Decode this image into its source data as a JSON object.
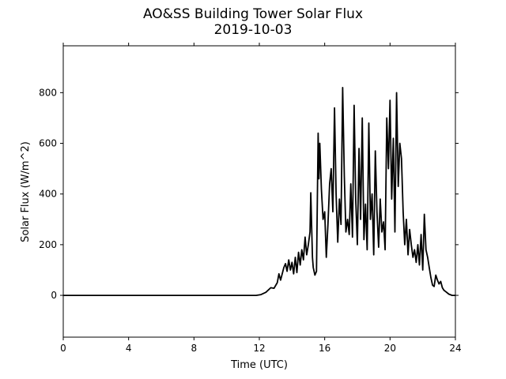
{
  "chart_data": {
    "type": "line",
    "title": "AO&SS Building Tower Solar Flux",
    "subtitle": "2019-10-03",
    "xlabel": "Time (UTC)",
    "ylabel": "Solar Flux (W/m^2)",
    "xlim": [
      0,
      24
    ],
    "ylim": [
      -165,
      985
    ],
    "xticks": [
      0,
      4,
      8,
      12,
      16,
      20,
      24
    ],
    "yticks": [
      0,
      200,
      400,
      600,
      800
    ],
    "grid": false,
    "legend": "none",
    "series": [
      {
        "color": "#000000",
        "points": [
          [
            0,
            0
          ],
          [
            11.8,
            0
          ],
          [
            12.1,
            3
          ],
          [
            12.4,
            12
          ],
          [
            12.7,
            30
          ],
          [
            12.9,
            28
          ],
          [
            13.1,
            50
          ],
          [
            13.2,
            85
          ],
          [
            13.3,
            60
          ],
          [
            13.5,
            110
          ],
          [
            13.6,
            125
          ],
          [
            13.7,
            95
          ],
          [
            13.8,
            140
          ],
          [
            13.9,
            100
          ],
          [
            14.0,
            130
          ],
          [
            14.1,
            85
          ],
          [
            14.2,
            150
          ],
          [
            14.3,
            90
          ],
          [
            14.4,
            170
          ],
          [
            14.5,
            120
          ],
          [
            14.6,
            180
          ],
          [
            14.7,
            140
          ],
          [
            14.8,
            230
          ],
          [
            14.9,
            160
          ],
          [
            15.0,
            200
          ],
          [
            15.1,
            250
          ],
          [
            15.15,
            405
          ],
          [
            15.2,
            280
          ],
          [
            15.25,
            150
          ],
          [
            15.3,
            110
          ],
          [
            15.4,
            80
          ],
          [
            15.5,
            95
          ],
          [
            15.6,
            640
          ],
          [
            15.65,
            460
          ],
          [
            15.7,
            600
          ],
          [
            15.8,
            420
          ],
          [
            15.9,
            300
          ],
          [
            16.0,
            330
          ],
          [
            16.1,
            150
          ],
          [
            16.2,
            280
          ],
          [
            16.3,
            440
          ],
          [
            16.4,
            500
          ],
          [
            16.5,
            330
          ],
          [
            16.6,
            740
          ],
          [
            16.7,
            400
          ],
          [
            16.8,
            210
          ],
          [
            16.9,
            380
          ],
          [
            17.0,
            280
          ],
          [
            17.1,
            820
          ],
          [
            17.2,
            470
          ],
          [
            17.3,
            250
          ],
          [
            17.4,
            300
          ],
          [
            17.5,
            240
          ],
          [
            17.6,
            440
          ],
          [
            17.7,
            230
          ],
          [
            17.8,
            750
          ],
          [
            17.9,
            380
          ],
          [
            18.0,
            200
          ],
          [
            18.1,
            580
          ],
          [
            18.2,
            300
          ],
          [
            18.3,
            700
          ],
          [
            18.4,
            220
          ],
          [
            18.5,
            360
          ],
          [
            18.6,
            180
          ],
          [
            18.7,
            680
          ],
          [
            18.8,
            300
          ],
          [
            18.9,
            400
          ],
          [
            19.0,
            160
          ],
          [
            19.1,
            570
          ],
          [
            19.2,
            330
          ],
          [
            19.3,
            190
          ],
          [
            19.4,
            380
          ],
          [
            19.5,
            250
          ],
          [
            19.6,
            290
          ],
          [
            19.7,
            180
          ],
          [
            19.8,
            700
          ],
          [
            19.9,
            500
          ],
          [
            20.0,
            770
          ],
          [
            20.1,
            380
          ],
          [
            20.2,
            620
          ],
          [
            20.3,
            250
          ],
          [
            20.4,
            800
          ],
          [
            20.5,
            430
          ],
          [
            20.6,
            600
          ],
          [
            20.7,
            540
          ],
          [
            20.8,
            330
          ],
          [
            20.9,
            200
          ],
          [
            21.0,
            300
          ],
          [
            21.1,
            160
          ],
          [
            21.2,
            260
          ],
          [
            21.3,
            200
          ],
          [
            21.4,
            150
          ],
          [
            21.5,
            180
          ],
          [
            21.6,
            130
          ],
          [
            21.7,
            200
          ],
          [
            21.8,
            120
          ],
          [
            21.9,
            240
          ],
          [
            22.0,
            100
          ],
          [
            22.1,
            320
          ],
          [
            22.2,
            180
          ],
          [
            22.3,
            150
          ],
          [
            22.4,
            110
          ],
          [
            22.5,
            70
          ],
          [
            22.6,
            40
          ],
          [
            22.7,
            35
          ],
          [
            22.8,
            80
          ],
          [
            22.9,
            60
          ],
          [
            23.0,
            45
          ],
          [
            23.1,
            55
          ],
          [
            23.2,
            30
          ],
          [
            23.3,
            20
          ],
          [
            23.4,
            15
          ],
          [
            23.6,
            5
          ],
          [
            23.8,
            0
          ],
          [
            24,
            0
          ]
        ]
      }
    ]
  }
}
